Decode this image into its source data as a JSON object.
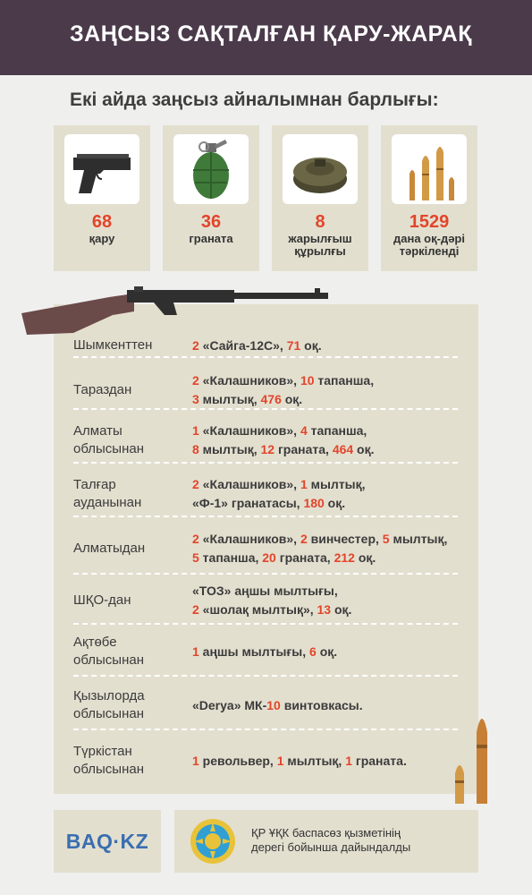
{
  "header": {
    "title": "ЗАҢСЫЗ САҚТАЛҒАН ҚАРУ-ЖАРАҚ"
  },
  "subtitle": "Екі айда заңсыз айналымнан барлығы:",
  "cards": [
    {
      "number": "68",
      "label": "қару",
      "icon": "pistol-icon"
    },
    {
      "number": "36",
      "label": "граната",
      "icon": "grenade-icon"
    },
    {
      "number": "8",
      "label_lines": [
        "жарылғыш",
        "құрылғы"
      ],
      "icon": "mine-icon"
    },
    {
      "number": "1529",
      "label_lines": [
        "дана оқ-дәрі",
        "тәркіленді"
      ],
      "icon": "ammo-icon"
    }
  ],
  "rows": [
    {
      "region": [
        "Шымкенттен"
      ],
      "detail": [
        [
          {
            "t": "2",
            "h": true
          },
          {
            "t": " «Сайга-12С», "
          },
          {
            "t": "71",
            "h": true
          },
          {
            "t": " оқ."
          }
        ]
      ]
    },
    {
      "region": [
        "Тараздан"
      ],
      "detail": [
        [
          {
            "t": "2",
            "h": true
          },
          {
            "t": " «Калашников», "
          },
          {
            "t": "10",
            "h": true
          },
          {
            "t": " тапанша,"
          }
        ],
        [
          {
            "t": "3",
            "h": true
          },
          {
            "t": " мылтық, "
          },
          {
            "t": "476",
            "h": true
          },
          {
            "t": " оқ."
          }
        ]
      ]
    },
    {
      "region": [
        "Алматы",
        "облысынан"
      ],
      "detail": [
        [
          {
            "t": "1",
            "h": true
          },
          {
            "t": " «Калашников», "
          },
          {
            "t": "4",
            "h": true
          },
          {
            "t": " тапанша,"
          }
        ],
        [
          {
            "t": "8",
            "h": true
          },
          {
            "t": " мылтық, "
          },
          {
            "t": "12",
            "h": true
          },
          {
            "t": " граната, "
          },
          {
            "t": "464",
            "h": true
          },
          {
            "t": " оқ."
          }
        ]
      ]
    },
    {
      "region": [
        "Талғар",
        "ауданынан"
      ],
      "detail": [
        [
          {
            "t": "2",
            "h": true
          },
          {
            "t": " «Калашников», "
          },
          {
            "t": "1",
            "h": true
          },
          {
            "t": " мылтық,"
          }
        ],
        [
          {
            "t": "«Ф-1» гранатасы, "
          },
          {
            "t": "180",
            "h": true
          },
          {
            "t": " оқ."
          }
        ]
      ]
    },
    {
      "region": [
        "Алматыдан"
      ],
      "detail": [
        [
          {
            "t": "2",
            "h": true
          },
          {
            "t": " «Калашников», "
          },
          {
            "t": "2",
            "h": true
          },
          {
            "t": " винчестер, "
          },
          {
            "t": "5",
            "h": true
          },
          {
            "t": " мылтық,"
          }
        ],
        [
          {
            "t": "5",
            "h": true
          },
          {
            "t": " тапанша, "
          },
          {
            "t": "20",
            "h": true
          },
          {
            "t": " граната, "
          },
          {
            "t": "212",
            "h": true
          },
          {
            "t": " оқ."
          }
        ]
      ]
    },
    {
      "region": [
        "ШҚО-дан"
      ],
      "detail": [
        [
          {
            "t": "«ТОЗ» аңшы мылтығы,"
          }
        ],
        [
          {
            "t": "2",
            "h": true
          },
          {
            "t": " «шолақ мылтық», "
          },
          {
            "t": "13",
            "h": true
          },
          {
            "t": " оқ."
          }
        ]
      ]
    },
    {
      "region": [
        "Ақтөбе",
        "облысынан"
      ],
      "detail": [
        [
          {
            "t": "1",
            "h": true
          },
          {
            "t": " аңшы мылтығы, "
          },
          {
            "t": "6",
            "h": true
          },
          {
            "t": " оқ."
          }
        ]
      ]
    },
    {
      "region": [
        "Қызылорда",
        "облысынан"
      ],
      "detail": [
        [
          {
            "t": "«Derya» МК-"
          },
          {
            "t": "10",
            "h": true
          },
          {
            "t": " винтовкасы."
          }
        ]
      ]
    },
    {
      "region": [
        "Түркістан",
        "облысынан"
      ],
      "detail": [
        [
          {
            "t": "1",
            "h": true
          },
          {
            "t": " револьвер, "
          },
          {
            "t": "1",
            "h": true
          },
          {
            "t": " мылтық, "
          },
          {
            "t": "1",
            "h": true
          },
          {
            "t": " граната."
          }
        ]
      ]
    }
  ],
  "footer": {
    "brand": "BAQ·KZ",
    "credit_lines": [
      "ҚР ҰҚК баспасөз қызметінің",
      "дерегі бойынша дайындалды"
    ]
  },
  "colors": {
    "header_bg": "#4a3a4a",
    "accent": "#e2452b",
    "card_bg": "#e3dfcf",
    "brand": "#3a6fb0"
  }
}
